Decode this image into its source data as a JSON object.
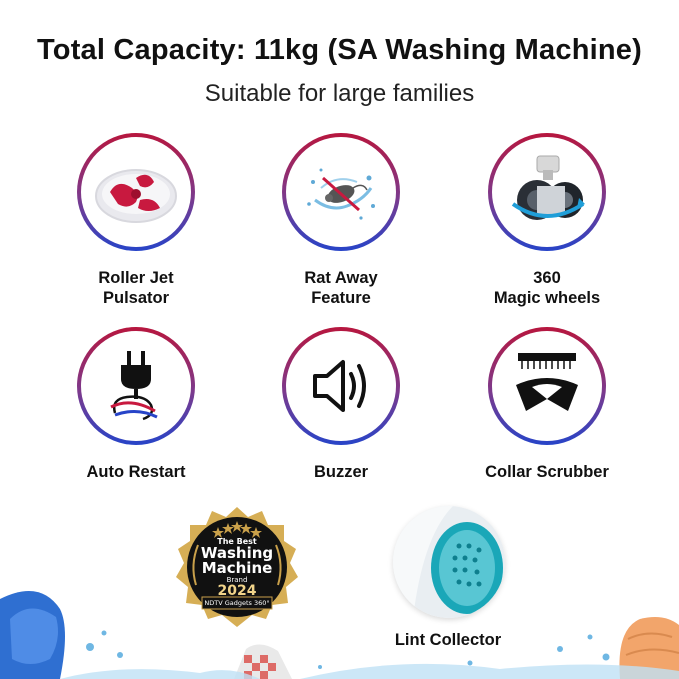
{
  "header": {
    "title": "Total Capacity: 11kg (SA Washing Machine)",
    "subtitle": "Suitable for large families"
  },
  "features": [
    {
      "line1": "Roller Jet",
      "line2": "Pulsator",
      "icon": "pulsator-icon"
    },
    {
      "line1": "Rat Away",
      "line2": "Feature",
      "icon": "rat-away-icon"
    },
    {
      "line1": "360",
      "line2": "Magic wheels",
      "icon": "wheel-icon"
    },
    {
      "line1": "Auto Restart",
      "line2": "",
      "icon": "plug-icon"
    },
    {
      "line1": "Buzzer",
      "line2": "",
      "icon": "speaker-icon"
    },
    {
      "line1": "Collar Scrubber",
      "line2": "",
      "icon": "collar-scrubber-icon"
    }
  ],
  "award": {
    "line1": "The Best",
    "line2": "Washing",
    "line3": "Machine",
    "line4": "Brand",
    "year": "2024",
    "source": "NDTV Gadgets 360°"
  },
  "lint": {
    "label": "Lint Collector",
    "icon": "lint-filter-icon"
  },
  "colors": {
    "ring_top": "#b7163e",
    "ring_bottom": "#2744c8",
    "badge_gold": "#c9a04a",
    "filter_teal": "#1aa7b8"
  }
}
